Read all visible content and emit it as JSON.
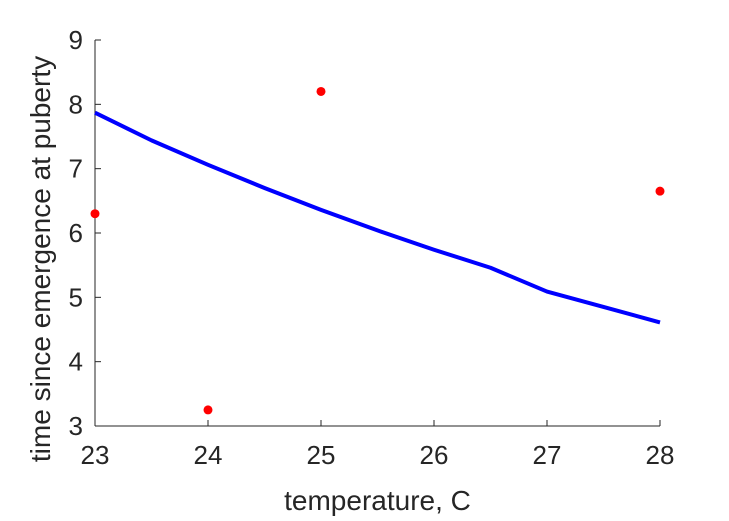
{
  "chart_data": {
    "type": "scatter",
    "xlabel": "temperature, C",
    "ylabel": "time since emergence at puberty",
    "xlim": [
      23,
      28
    ],
    "ylim": [
      3,
      9
    ],
    "xticks": [
      23,
      24,
      25,
      26,
      27,
      28
    ],
    "yticks": [
      3,
      4,
      5,
      6,
      7,
      8,
      9
    ],
    "grid": false,
    "legend": "none",
    "series": [
      {
        "kind": "scatter",
        "color": "#ff0000",
        "points": [
          {
            "x": 23,
            "y": 6.3
          },
          {
            "x": 24,
            "y": 3.25
          },
          {
            "x": 25,
            "y": 8.2
          },
          {
            "x": 28,
            "y": 6.65
          }
        ]
      },
      {
        "kind": "line",
        "color": "#0000ff",
        "points": [
          {
            "x": 23.0,
            "y": 7.87
          },
          {
            "x": 23.5,
            "y": 7.44
          },
          {
            "x": 24.0,
            "y": 7.06
          },
          {
            "x": 24.5,
            "y": 6.7
          },
          {
            "x": 25.0,
            "y": 6.36
          },
          {
            "x": 25.5,
            "y": 6.04
          },
          {
            "x": 26.0,
            "y": 5.74
          },
          {
            "x": 26.5,
            "y": 5.46
          },
          {
            "x": 27.0,
            "y": 5.09
          },
          {
            "x": 27.5,
            "y": 4.85
          },
          {
            "x": 28.0,
            "y": 4.61
          }
        ]
      }
    ]
  }
}
